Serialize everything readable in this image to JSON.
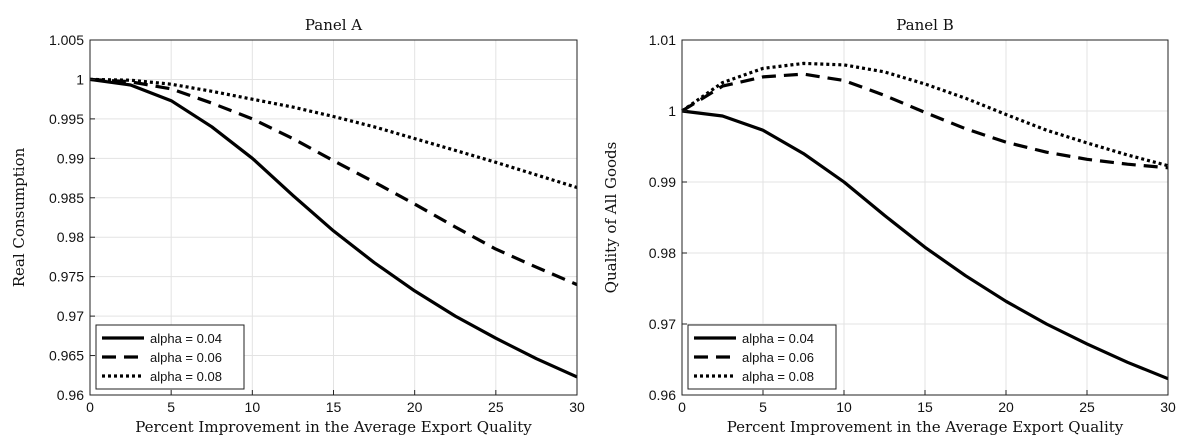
{
  "chart_data": [
    {
      "type": "line",
      "title": "Panel A",
      "xlabel": "Percent Improvement in the Average Export Quality",
      "ylabel": "Real Consumption",
      "xlim": [
        0,
        30
      ],
      "ylim": [
        0.96,
        1.005
      ],
      "xticks": [
        0,
        5,
        10,
        15,
        20,
        25,
        30
      ],
      "xtick_labels": [
        "0",
        "5",
        "10",
        "15",
        "20",
        "25",
        "30"
      ],
      "yticks": [
        0.96,
        0.965,
        0.97,
        0.975,
        0.98,
        0.985,
        0.99,
        0.995,
        1,
        1.005
      ],
      "ytick_labels": [
        "0.96",
        "0.965",
        "0.97",
        "0.975",
        "0.98",
        "0.985",
        "0.99",
        "0.995",
        "1",
        "1.005"
      ],
      "grid": true,
      "legend_position": "bottom-left",
      "x": [
        0,
        2.5,
        5,
        7.5,
        10,
        12.5,
        15,
        17.5,
        20,
        22.5,
        25,
        27.5,
        30
      ],
      "series": [
        {
          "name": "alpha = 0.04",
          "style": "solid",
          "values": [
            1.0,
            0.9993,
            0.9973,
            0.994,
            0.99,
            0.9853,
            0.9808,
            0.9768,
            0.9732,
            0.97,
            0.9672,
            0.9646,
            0.9623
          ]
        },
        {
          "name": "alpha = 0.06",
          "style": "dashed",
          "values": [
            1.0,
            0.9997,
            0.9988,
            0.997,
            0.995,
            0.9925,
            0.9897,
            0.987,
            0.9842,
            0.9813,
            0.9785,
            0.9762,
            0.974
          ]
        },
        {
          "name": "alpha = 0.08",
          "style": "dotted",
          "values": [
            1.0,
            0.9999,
            0.9994,
            0.9985,
            0.9975,
            0.9965,
            0.9953,
            0.994,
            0.9925,
            0.991,
            0.9895,
            0.9879,
            0.9863
          ]
        }
      ]
    },
    {
      "type": "line",
      "title": "Panel B",
      "xlabel": "Percent Improvement in the Average Export Quality",
      "ylabel": "Quality of All Goods",
      "xlim": [
        0,
        30
      ],
      "ylim": [
        0.96,
        1.01
      ],
      "xticks": [
        0,
        5,
        10,
        15,
        20,
        25,
        30
      ],
      "xtick_labels": [
        "0",
        "5",
        "10",
        "15",
        "20",
        "25",
        "30"
      ],
      "yticks": [
        0.96,
        0.97,
        0.98,
        0.99,
        1,
        1.01
      ],
      "ytick_labels": [
        "0.96",
        "0.97",
        "0.98",
        "0.99",
        "1",
        "1.01"
      ],
      "grid": true,
      "legend_position": "bottom-left",
      "x": [
        0,
        2.5,
        5,
        7.5,
        10,
        12.5,
        15,
        17.5,
        20,
        22.5,
        25,
        27.5,
        30
      ],
      "series": [
        {
          "name": "alpha = 0.04",
          "style": "solid",
          "values": [
            1.0,
            0.9993,
            0.9973,
            0.994,
            0.99,
            0.9853,
            0.9808,
            0.9768,
            0.9732,
            0.97,
            0.9672,
            0.9646,
            0.9623
          ]
        },
        {
          "name": "alpha = 0.06",
          "style": "dashed",
          "values": [
            1.0,
            1.0035,
            1.0048,
            1.0052,
            1.0043,
            1.0022,
            0.9998,
            0.9975,
            0.9956,
            0.9942,
            0.9932,
            0.9925,
            0.992
          ]
        },
        {
          "name": "alpha = 0.08",
          "style": "dotted",
          "values": [
            1.0,
            1.004,
            1.006,
            1.0067,
            1.0065,
            1.0055,
            1.0038,
            1.0018,
            0.9995,
            0.9973,
            0.9955,
            0.9938,
            0.9923
          ]
        }
      ]
    }
  ]
}
